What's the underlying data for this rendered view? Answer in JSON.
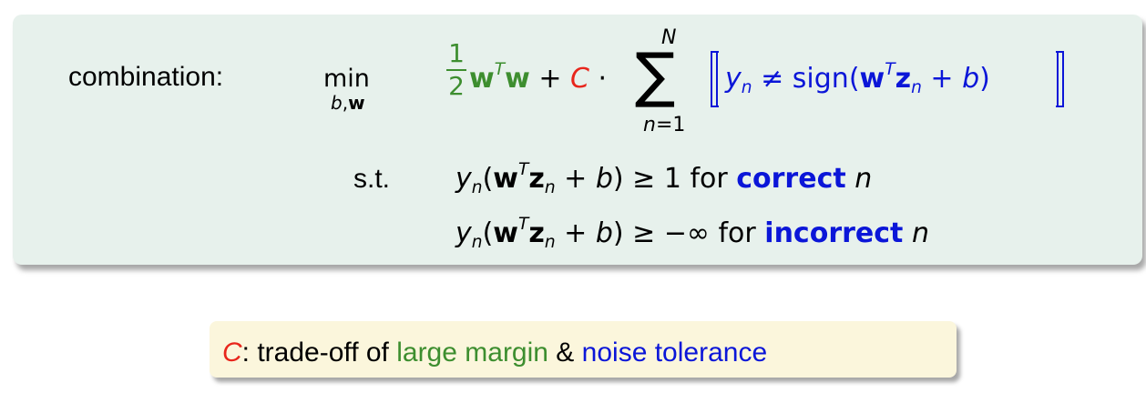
{
  "formula": {
    "label": "combination:",
    "min_word": "min",
    "min_sub": "b,w",
    "frac_num": "1",
    "frac_den": "2",
    "w": "w",
    "T": "T",
    "plus": "+",
    "C": "C",
    "dot": "·",
    "sum_top": "N",
    "sum_symbol": "∑",
    "sum_bottom": "n=1",
    "y": "y",
    "n": "n",
    "neq": "≠",
    "sign": "sign(",
    "z": "z",
    "b": "b",
    "close": ")",
    "constraints_label": "s.t.",
    "constraint1": {
      "open": "(",
      "tail": ") ≥ 1 for ",
      "keyword": "correct",
      "n": "n"
    },
    "constraint2": {
      "open": "(",
      "tail": ") ≥ −∞ for ",
      "keyword": "incorrect",
      "n": "n"
    }
  },
  "note": {
    "C": "C",
    "colon": ": trade-off of ",
    "large_margin": "large margin",
    "amp": " & ",
    "noise_tolerance": "noise tolerance"
  },
  "colors": {
    "box_background": "#e7f1ec",
    "note_background": "#fbf6dc",
    "green": "#3d8e2f",
    "red": "#e8261c",
    "blue": "#0b16d8"
  }
}
